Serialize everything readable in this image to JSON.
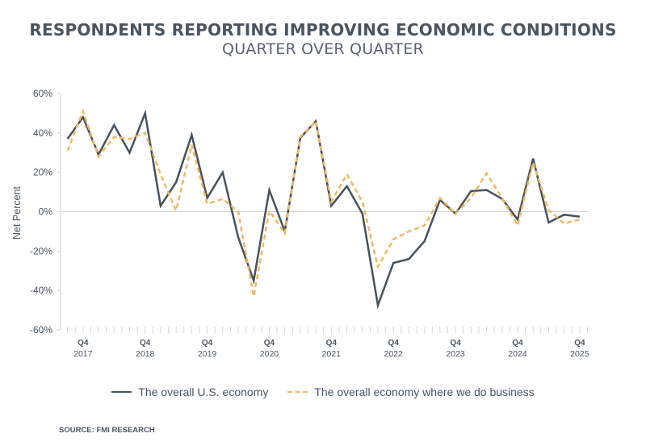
{
  "header": {
    "title": "RESPONDENTS REPORTING IMPROVING ECONOMIC CONDITIONS",
    "subtitle": "QUARTER OVER QUARTER"
  },
  "legend": {
    "items": [
      {
        "label": "The overall U.S. economy",
        "style": "solid",
        "color": "#46525d"
      },
      {
        "label": "The overall economy where we do business",
        "style": "dashed",
        "color": "#f5b85c"
      }
    ]
  },
  "source": "SOURCE: FMI RESEARCH",
  "chart_data": {
    "type": "line",
    "title": "RESPONDENTS REPORTING IMPROVING ECONOMIC CONDITIONS",
    "subtitle": "QUARTER OVER QUARTER",
    "xlabel": "",
    "ylabel": "Net Percent",
    "ylim": [
      -60,
      60
    ],
    "yticks": [
      60,
      40,
      20,
      0,
      -20,
      -40,
      -60
    ],
    "ytick_labels": [
      "60%",
      "40%",
      "20%",
      "0%",
      "-20%",
      "-40%",
      "-60%"
    ],
    "grid": false,
    "zero_line": true,
    "legend_position": "bottom",
    "x": [
      "Q3 2017",
      "Q4 2017",
      "Q1 2018",
      "Q2 2018",
      "Q3 2018",
      "Q4 2018",
      "Q1 2019",
      "Q2 2019",
      "Q3 2019",
      "Q4 2019",
      "Q1 2020",
      "Q2 2020",
      "Q3 2020",
      "Q4 2020",
      "Q1 2021",
      "Q2 2021",
      "Q3 2021",
      "Q4 2021",
      "Q1 2022",
      "Q2 2022",
      "Q3 2022",
      "Q4 2022",
      "Q1 2023",
      "Q2 2023",
      "Q3 2023",
      "Q4 2023",
      "Q1 2024",
      "Q2 2024",
      "Q3 2024",
      "Q4 2024",
      "Q1 2025",
      "Q2 2025",
      "Q3 2025",
      "Q4 2025"
    ],
    "xtick_labels": [
      {
        "index": 1,
        "q": "Q4",
        "year": "2017"
      },
      {
        "index": 5,
        "q": "Q4",
        "year": "2018"
      },
      {
        "index": 9,
        "q": "Q4",
        "year": "2019"
      },
      {
        "index": 13,
        "q": "Q4",
        "year": "2020"
      },
      {
        "index": 17,
        "q": "Q4",
        "year": "2021"
      },
      {
        "index": 21,
        "q": "Q4",
        "year": "2022"
      },
      {
        "index": 25,
        "q": "Q4",
        "year": "2023"
      },
      {
        "index": 29,
        "q": "Q4",
        "year": "2024"
      },
      {
        "index": 33,
        "q": "Q4",
        "year": "2025"
      }
    ],
    "series": [
      {
        "name": "The overall U.S. economy",
        "style": "solid",
        "color": "#46525d",
        "values": [
          37,
          48,
          29,
          44,
          30,
          50,
          3,
          15,
          39,
          7,
          20,
          -13,
          -35,
          11,
          -10,
          37.5,
          46,
          3,
          13,
          -1,
          -47.5,
          -26,
          -24,
          -15,
          6,
          -1,
          10.5,
          11,
          6.5,
          -4,
          27,
          -5.5,
          -1.5,
          -2.5
        ]
      },
      {
        "name": "The overall economy where we do business",
        "style": "dashed",
        "color": "#f5b85c",
        "values": [
          31,
          51,
          28,
          38,
          37,
          40,
          19,
          0.5,
          34,
          4,
          6.5,
          0,
          -43,
          0.5,
          -11,
          38,
          46,
          5,
          19,
          5,
          -28,
          -14,
          -10,
          -7,
          7,
          -1,
          7,
          19.5,
          7,
          -7,
          25,
          1,
          -6,
          -4
        ]
      }
    ]
  }
}
